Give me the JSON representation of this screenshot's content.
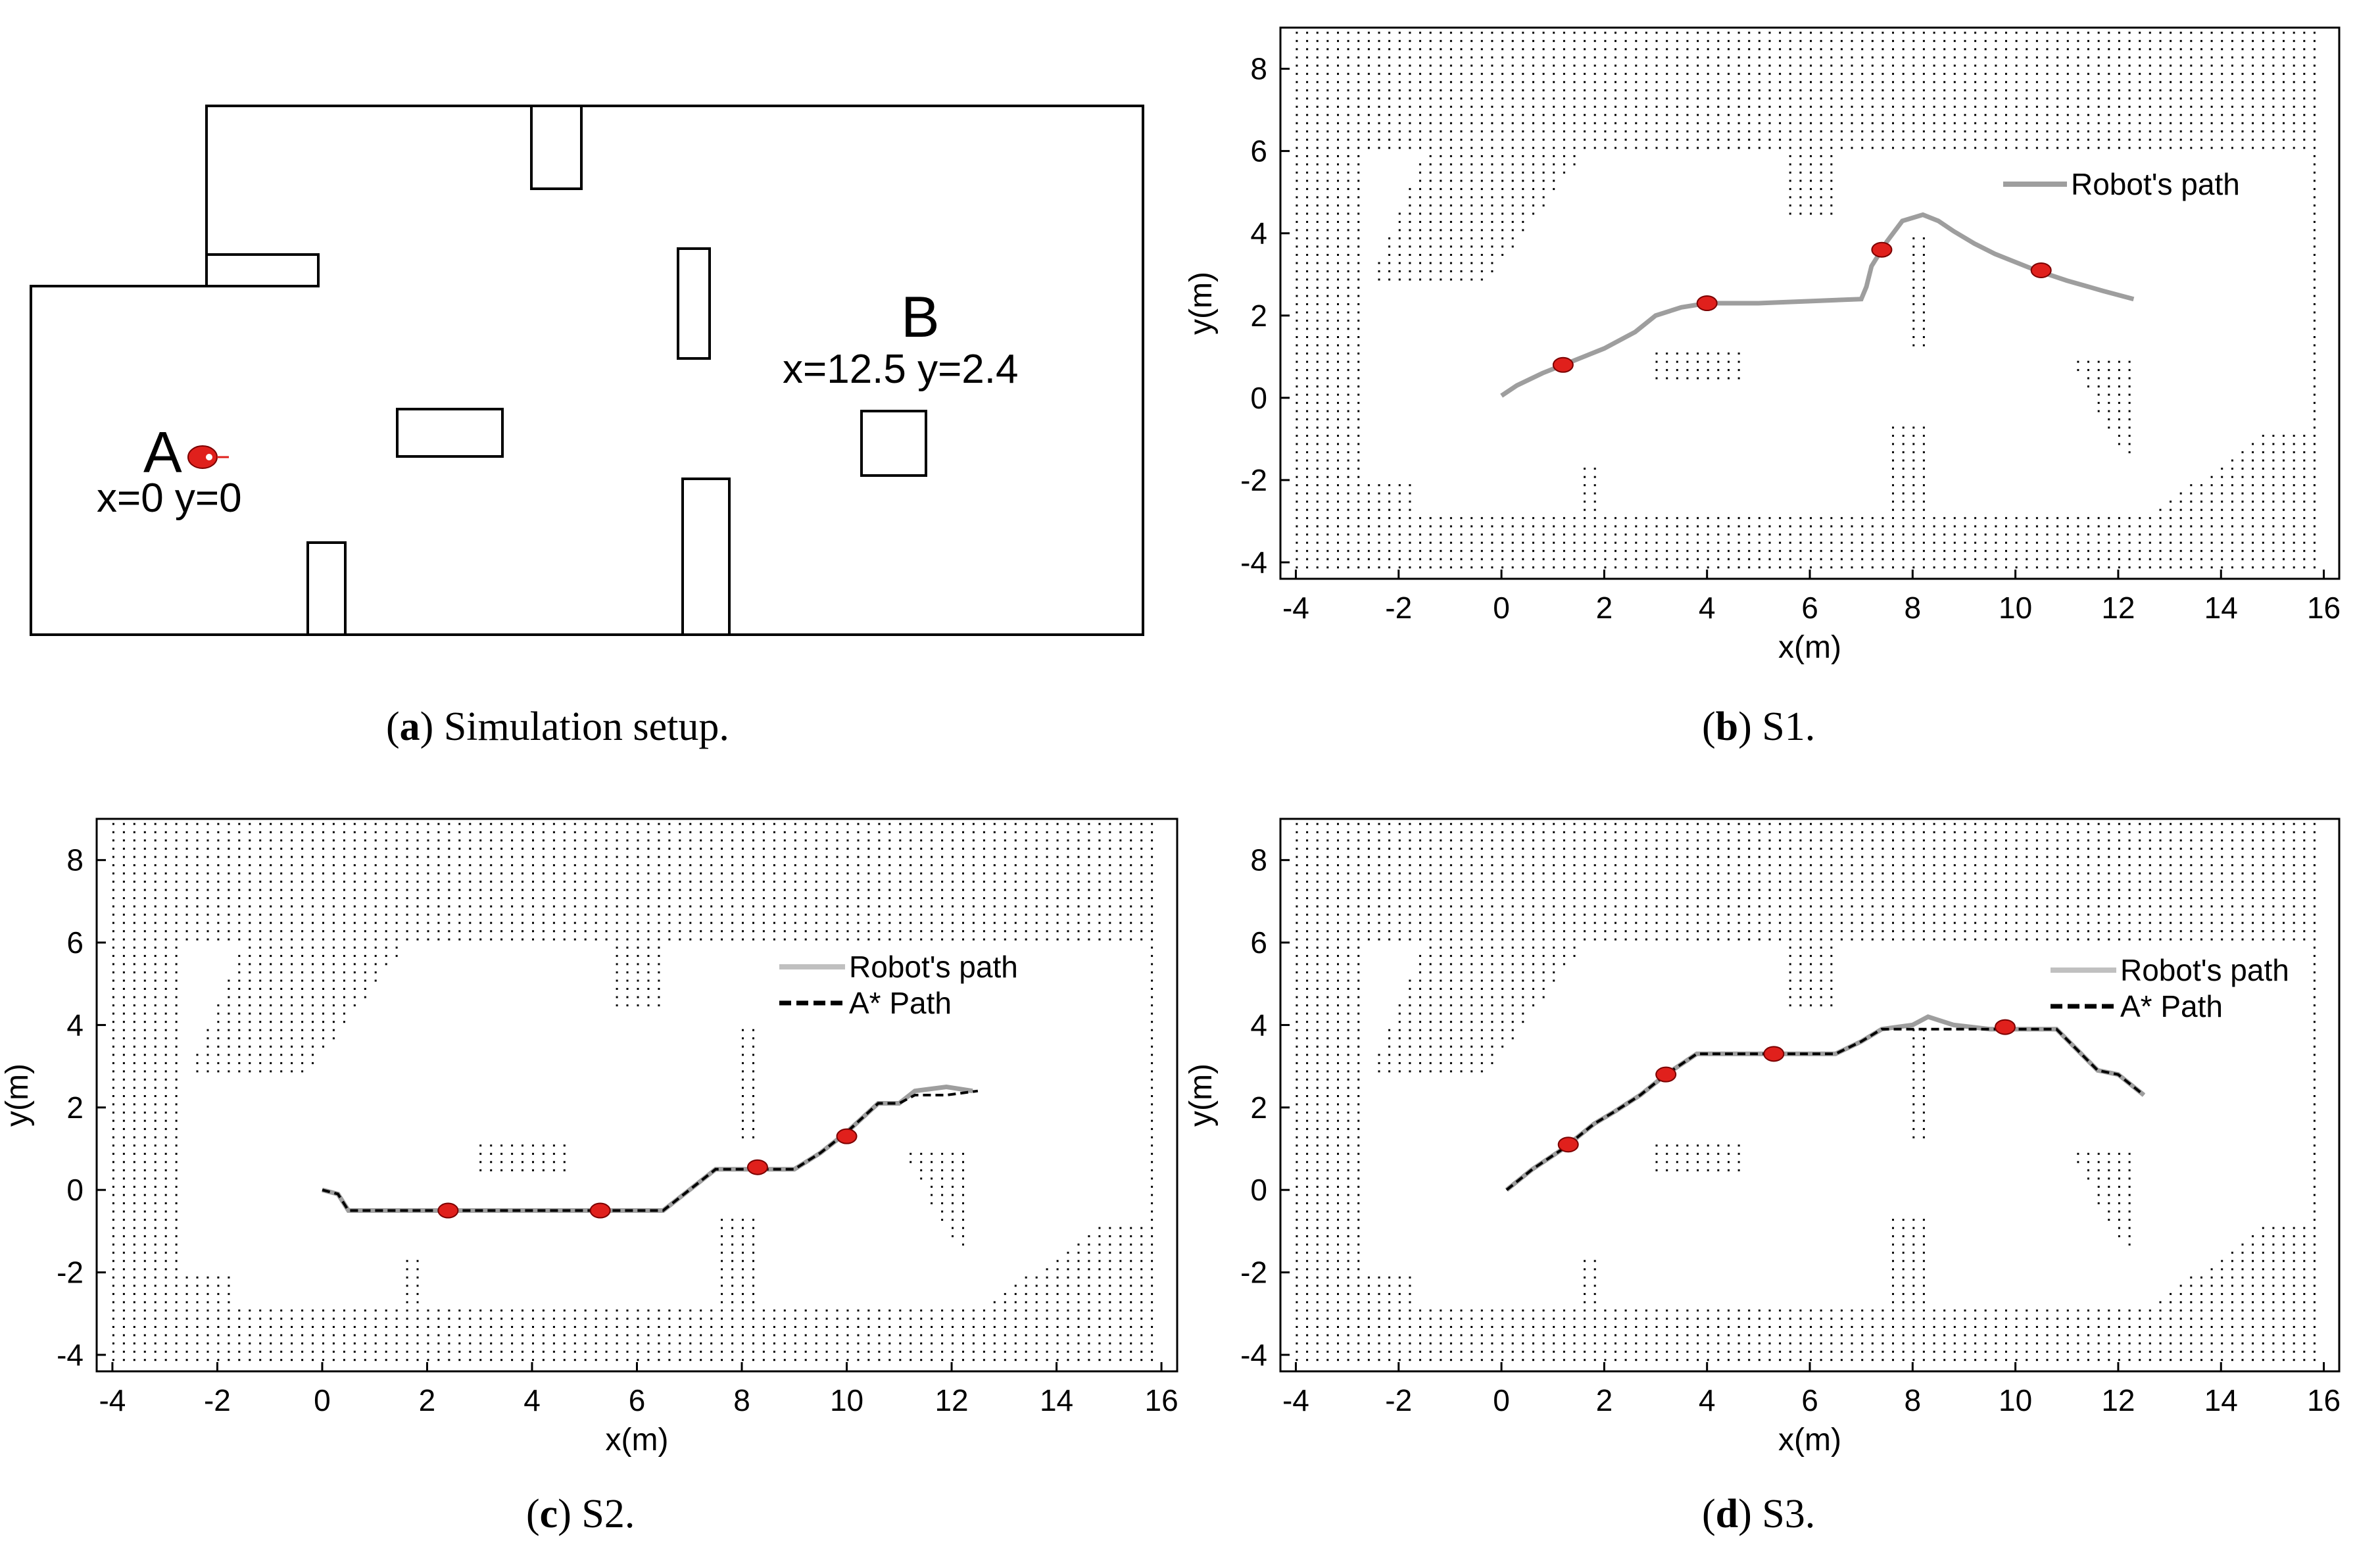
{
  "figure": {
    "captions": [
      {
        "letter": "a",
        "text": "Simulation setup."
      },
      {
        "letter": "b",
        "text": "S1."
      },
      {
        "letter": "c",
        "text": "S2."
      },
      {
        "letter": "d",
        "text": "S3."
      }
    ]
  },
  "setup": {
    "point_a": {
      "label": "A",
      "coords": "x=0 y=0"
    },
    "point_b": {
      "label": "B",
      "coords": "x=12.5 y=2.4"
    }
  },
  "colors": {
    "robot_path": "#9e9e9e",
    "robot_path_legend_s2s3": "#c0c0c0",
    "astar_path": "#000000",
    "marker": "#e0201c",
    "grid_dot": "#000000"
  },
  "chart_data": [
    {
      "id": "S1",
      "type": "line",
      "xlabel": "x(m)",
      "ylabel": "y(m)",
      "xlim": [
        -4.3,
        16.3
      ],
      "ylim": [
        -4.4,
        9.0
      ],
      "xticks": [
        "-4",
        "-2",
        "0",
        "2",
        "4",
        "6",
        "8",
        "10",
        "12",
        "14",
        "16"
      ],
      "yticks": [
        "-4",
        "-2",
        "0",
        "2",
        "4",
        "6",
        "8"
      ],
      "legend": [
        "Robot's path"
      ],
      "legend_position": "top-right",
      "series": [
        {
          "name": "Robot's path",
          "style": "solid",
          "x": [
            0.0,
            0.3,
            0.8,
            1.4,
            2.0,
            2.6,
            3.0,
            3.5,
            4.0,
            5.0,
            6.0,
            7.0,
            7.1,
            7.2,
            7.5,
            7.8,
            8.2,
            8.5,
            8.8,
            9.2,
            9.6,
            10.4,
            11.0,
            11.7,
            12.3
          ],
          "y": [
            0.05,
            0.3,
            0.6,
            0.9,
            1.2,
            1.6,
            2.0,
            2.2,
            2.3,
            2.3,
            2.35,
            2.4,
            2.7,
            3.2,
            3.8,
            4.3,
            4.45,
            4.3,
            4.05,
            3.75,
            3.5,
            3.1,
            2.85,
            2.6,
            2.4
          ]
        }
      ],
      "markers": {
        "x": [
          1.2,
          4.0,
          7.4,
          10.5
        ],
        "y": [
          0.8,
          2.3,
          3.6,
          3.1
        ]
      }
    },
    {
      "id": "S2",
      "type": "line",
      "xlabel": "x(m)",
      "ylabel": "y(m)",
      "xlim": [
        -4.3,
        16.3
      ],
      "ylim": [
        -4.4,
        9.0
      ],
      "xticks": [
        "-4",
        "-2",
        "0",
        "2",
        "4",
        "6",
        "8",
        "10",
        "12",
        "14",
        "16"
      ],
      "yticks": [
        "-4",
        "-2",
        "0",
        "2",
        "4",
        "6",
        "8"
      ],
      "legend": [
        "Robot's path",
        "A* Path"
      ],
      "legend_position": "top-right",
      "series": [
        {
          "name": "Robot's path",
          "style": "solid",
          "x": [
            0.0,
            0.3,
            0.5,
            1.5,
            2.5,
            3.5,
            4.5,
            5.5,
            6.5,
            7.0,
            7.5,
            8.0,
            8.5,
            9.0,
            9.5,
            10.0,
            10.6,
            11.0,
            11.3,
            11.9,
            12.4
          ],
          "y": [
            0.0,
            -0.1,
            -0.5,
            -0.5,
            -0.5,
            -0.5,
            -0.5,
            -0.5,
            -0.5,
            0.0,
            0.5,
            0.5,
            0.5,
            0.5,
            0.9,
            1.4,
            2.1,
            2.1,
            2.4,
            2.5,
            2.4
          ]
        },
        {
          "name": "A* Path",
          "style": "dashed",
          "x": [
            0.0,
            0.3,
            0.5,
            1.5,
            2.5,
            3.5,
            4.5,
            5.5,
            6.5,
            7.0,
            7.5,
            8.0,
            8.5,
            9.0,
            9.5,
            10.0,
            10.6,
            11.0,
            11.3,
            11.9,
            12.5
          ],
          "y": [
            0.0,
            -0.1,
            -0.5,
            -0.5,
            -0.5,
            -0.5,
            -0.5,
            -0.5,
            -0.5,
            0.0,
            0.5,
            0.5,
            0.5,
            0.5,
            0.9,
            1.4,
            2.1,
            2.1,
            2.3,
            2.3,
            2.4
          ]
        }
      ],
      "markers": {
        "x": [
          2.4,
          5.3,
          8.3,
          10.0
        ],
        "y": [
          -0.5,
          -0.5,
          0.55,
          1.3
        ]
      }
    },
    {
      "id": "S3",
      "type": "line",
      "xlabel": "x(m)",
      "ylabel": "y(m)",
      "xlim": [
        -4.3,
        16.3
      ],
      "ylim": [
        -4.4,
        9.0
      ],
      "xticks": [
        "-4",
        "-2",
        "0",
        "2",
        "4",
        "6",
        "8",
        "10",
        "12",
        "14",
        "16"
      ],
      "yticks": [
        "-4",
        "-2",
        "0",
        "2",
        "4",
        "6",
        "8"
      ],
      "legend": [
        "Robot's path",
        "A* Path"
      ],
      "legend_position": "top-right",
      "series": [
        {
          "name": "Robot's path",
          "style": "solid",
          "x": [
            0.1,
            0.6,
            1.2,
            1.8,
            2.2,
            2.7,
            3.2,
            3.8,
            4.5,
            5.5,
            6.5,
            7.0,
            7.4,
            8.0,
            8.3,
            8.8,
            9.5,
            10.2,
            10.8,
            11.2,
            11.6,
            12.0,
            12.5
          ],
          "y": [
            0.0,
            0.5,
            1.0,
            1.6,
            1.9,
            2.3,
            2.8,
            3.3,
            3.3,
            3.3,
            3.3,
            3.6,
            3.9,
            4.0,
            4.2,
            4.0,
            3.9,
            3.9,
            3.9,
            3.4,
            2.9,
            2.8,
            2.3
          ]
        },
        {
          "name": "A* Path",
          "style": "dashed",
          "x": [
            0.1,
            0.6,
            1.2,
            1.8,
            2.2,
            2.7,
            3.2,
            3.8,
            4.5,
            5.5,
            6.5,
            7.0,
            7.4,
            8.0,
            8.5,
            9.0,
            9.5,
            10.2,
            10.8,
            11.2,
            11.6,
            12.0,
            12.5
          ],
          "y": [
            0.0,
            0.5,
            1.0,
            1.6,
            1.9,
            2.3,
            2.8,
            3.3,
            3.3,
            3.3,
            3.3,
            3.6,
            3.9,
            3.9,
            3.9,
            3.9,
            3.9,
            3.9,
            3.9,
            3.4,
            2.9,
            2.8,
            2.3
          ]
        }
      ],
      "markers": {
        "x": [
          1.3,
          3.2,
          5.3,
          9.8
        ],
        "y": [
          1.1,
          2.8,
          3.3,
          3.95
        ]
      }
    }
  ]
}
